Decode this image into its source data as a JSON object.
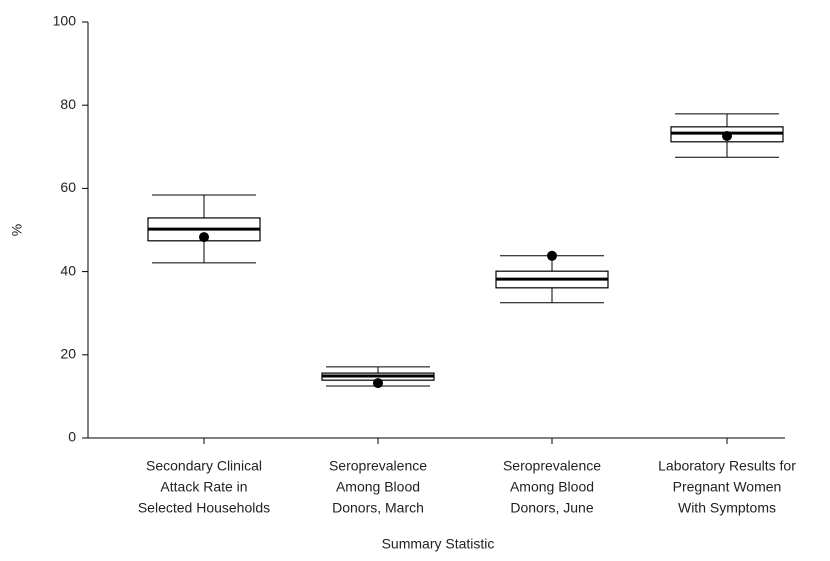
{
  "chart_data": {
    "type": "box",
    "x_label": "Summary Statistic",
    "y_label": "%",
    "categories": [
      [
        "Secondary Clinical",
        "Attack Rate in",
        "Selected Households"
      ],
      [
        "Seroprevalence",
        "Among Blood",
        "Donors, March"
      ],
      [
        "Seroprevalence",
        "Among Blood",
        "Donors, June"
      ],
      [
        "Laboratory Results for",
        "Pregnant Women",
        "With Symptoms"
      ]
    ],
    "boxes": [
      {
        "min": 42.1,
        "q1": 47.4,
        "median": 50.2,
        "q3": 52.9,
        "max": 58.4,
        "mean": 48.3
      },
      {
        "min": 12.5,
        "q1": 13.9,
        "median": 14.9,
        "q3": 15.6,
        "max": 17.1,
        "mean": 13.2
      },
      {
        "min": 32.5,
        "q1": 36.1,
        "median": 38.2,
        "q3": 40.1,
        "max": 43.8,
        "mean": 43.8
      },
      {
        "min": 67.5,
        "q1": 71.2,
        "median": 73.3,
        "q3": 74.8,
        "max": 77.9,
        "mean": 72.6
      }
    ],
    "color": "#000000",
    "box_fill": "#ffffff",
    "ylim": [
      0,
      100
    ],
    "yticks": [
      0,
      20,
      40,
      60,
      80,
      100
    ]
  }
}
